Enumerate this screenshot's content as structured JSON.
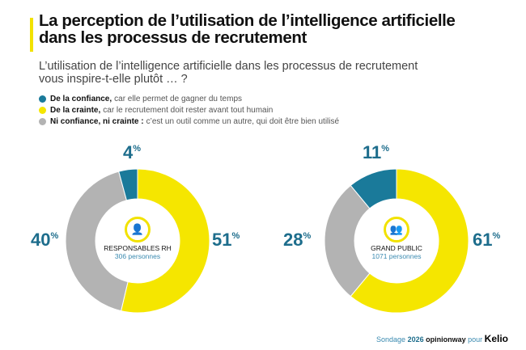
{
  "title": "La perception de l’utilisation de l’intelligence artificielle dans les processus de recrutement",
  "question": "L’utilisation de l’intelligence artificielle dans les processus de recrutement vous inspire-t-elle plutôt … ?",
  "legend": [
    {
      "bold": "De la confiance,",
      "text": "car elle permet de gagner du temps",
      "color": "#1a7a9a"
    },
    {
      "bold": "De la crainte,",
      "text": "car le recrutement doit rester avant tout humain",
      "color": "#f5e600"
    },
    {
      "bold": "Ni confiance, ni crainte :",
      "text": "c’est un outil comme un autre, qui doit être bien utilisé",
      "color": "#b3b3b3"
    }
  ],
  "chart_data": [
    {
      "type": "pie",
      "variant": "donut",
      "center_label": "RESPONSABLES RH",
      "center_sub": "306 personnes",
      "icon": "person-document-icon",
      "categories": [
        "De la confiance",
        "De la crainte",
        "Ni confiance, ni crainte"
      ],
      "values": [
        4,
        51,
        40
      ],
      "labels": [
        "4",
        "51",
        "40"
      ]
    },
    {
      "type": "pie",
      "variant": "donut",
      "center_label": "GRAND PUBLIC",
      "center_sub": "1071 personnes",
      "icon": "group-people-icon",
      "categories": [
        "De la confiance",
        "De la crainte",
        "Ni confiance, ni crainte"
      ],
      "values": [
        11,
        61,
        28
      ],
      "labels": [
        "11",
        "61",
        "28"
      ]
    }
  ],
  "percent_sign": "%",
  "footer": {
    "prefix": "Sondage",
    "year": "2026",
    "org": "opinionway",
    "pour": "pour",
    "client": "Kelio"
  }
}
